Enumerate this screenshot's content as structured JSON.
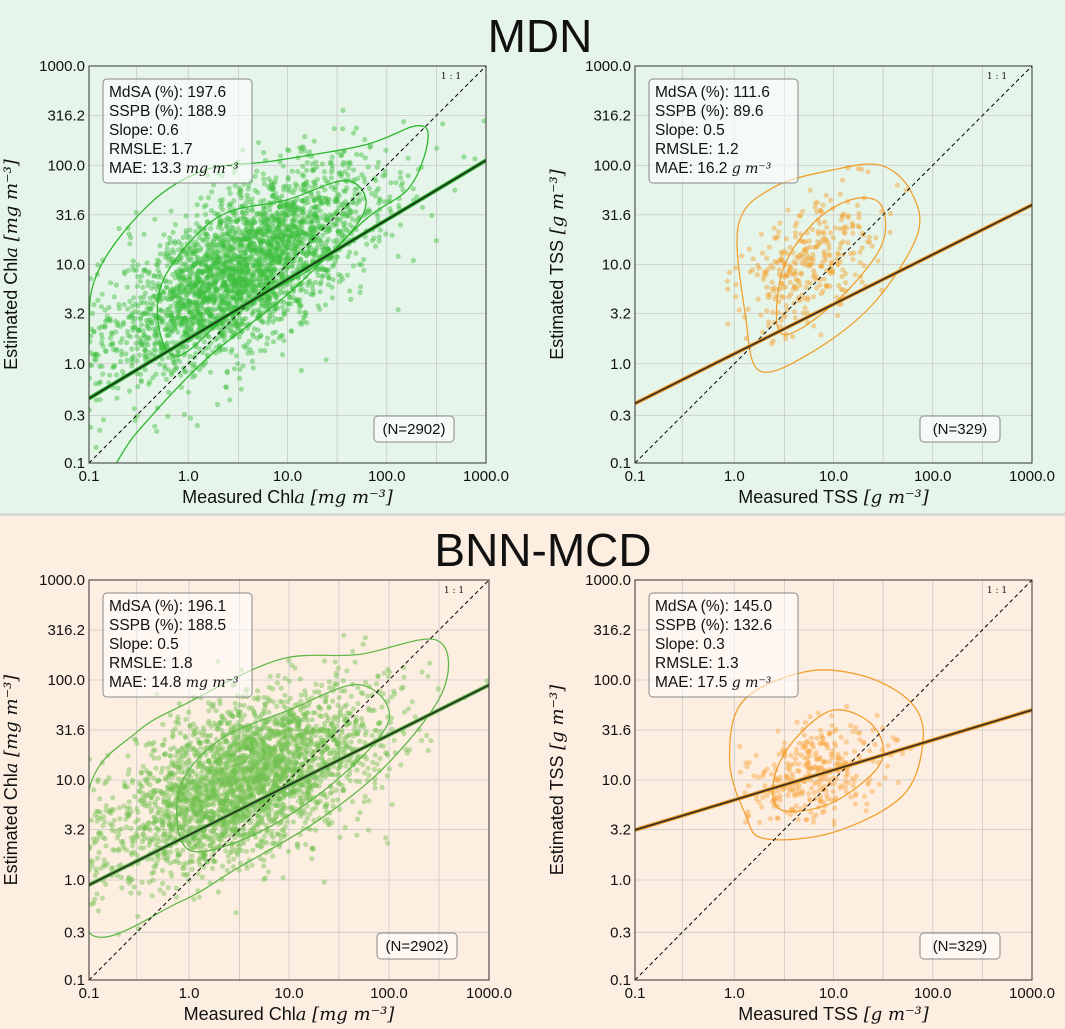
{
  "figure": {
    "sections": [
      {
        "title": "MDN",
        "background": "#e6f5ea"
      },
      {
        "title": "BNN-MCD",
        "background": "#fdeee2"
      }
    ],
    "tick_labels": [
      "0.1",
      "0.3",
      "1.0",
      "3.2",
      "10.0",
      "31.6",
      "100.0",
      "316.2",
      "1000.0"
    ],
    "one_to_one_label": "1 : 1"
  },
  "chart_data": [
    {
      "id": "mdn-chla",
      "type": "scatter",
      "scale": "log",
      "xlim": [
        0.1,
        1000
      ],
      "ylim": [
        0.1,
        1000
      ],
      "xlabel": "Measured Chl",
      "xlabel_italic": "a",
      "ylabel": "Estimated Chl",
      "ylabel_italic": "a",
      "unit": "[mg m⁻³]",
      "color": "#2db82d",
      "point_color": "#3dbf3d",
      "stats": [
        "MdSA (%): 197.6",
        "SSPB (%): 188.9",
        "Slope: 0.6",
        "RMSLE: 1.7"
      ],
      "mae_label": "MAE: 13.3",
      "mae_unit": "mg m⁻³",
      "n_label": "(N=2902)",
      "fit": {
        "intercept_log10": 0.25,
        "slope": 0.6
      },
      "sample": {
        "count": 2902,
        "center_log10": [
          0.55,
          0.95
        ],
        "spread_log10": [
          0.65,
          0.5
        ],
        "correlation": 0.65,
        "min_log10": [
          -1.0,
          -0.9
        ]
      },
      "outer_contour": [
        [
          0.1,
          0.05
        ],
        [
          0.3,
          0.2
        ],
        [
          1.5,
          1.1
        ],
        [
          10,
          5
        ],
        [
          60,
          28
        ],
        [
          170,
          60
        ],
        [
          260,
          180
        ],
        [
          200,
          250
        ],
        [
          60,
          160
        ],
        [
          7,
          110
        ],
        [
          1.5,
          90
        ],
        [
          0.4,
          40
        ],
        [
          0.12,
          8
        ],
        [
          0.1,
          1.5
        ]
      ],
      "inner_contour": [
        [
          0.8,
          1.2
        ],
        [
          3,
          3.5
        ],
        [
          20,
          10
        ],
        [
          60,
          35
        ],
        [
          40,
          70
        ],
        [
          10,
          45
        ],
        [
          2,
          30
        ],
        [
          0.6,
          8
        ],
        [
          0.5,
          2.5
        ]
      ]
    },
    {
      "id": "mdn-tss",
      "type": "scatter",
      "scale": "log",
      "xlim": [
        0.1,
        1000
      ],
      "ylim": [
        0.1,
        1000
      ],
      "xlabel": "Measured TSS",
      "xlabel_italic": "",
      "ylabel": "Estimated TSS",
      "ylabel_italic": "",
      "unit": "[g m⁻³]",
      "color": "#f0a030",
      "point_color": "#f5a22e",
      "stats": [
        "MdSA (%): 111.6",
        "SSPB (%): 89.6",
        "Slope: 0.5",
        "RMSLE: 1.2"
      ],
      "mae_label": "MAE: 16.2",
      "mae_unit": "g m⁻³",
      "n_label": "(N=329)",
      "fit": {
        "intercept_log10": 0.1,
        "slope": 0.5
      },
      "sample": {
        "count": 329,
        "center_log10": [
          0.75,
          1.05
        ],
        "spread_log10": [
          0.35,
          0.35
        ],
        "correlation": 0.45,
        "min_log10": [
          -0.1,
          0.2
        ]
      },
      "outer_contour": [
        [
          1.8,
          0.85
        ],
        [
          6,
          1.3
        ],
        [
          25,
          4
        ],
        [
          70,
          20
        ],
        [
          60,
          55
        ],
        [
          30,
          100
        ],
        [
          10,
          90
        ],
        [
          2.5,
          60
        ],
        [
          1.1,
          25
        ],
        [
          1.3,
          3
        ]
      ],
      "inner_contour": [
        [
          3,
          2
        ],
        [
          10,
          4
        ],
        [
          30,
          15
        ],
        [
          30,
          40
        ],
        [
          15,
          45
        ],
        [
          6,
          25
        ],
        [
          3,
          8
        ]
      ]
    },
    {
      "id": "bnn-chla",
      "type": "scatter",
      "scale": "log",
      "xlim": [
        0.1,
        1000
      ],
      "ylim": [
        0.1,
        1000
      ],
      "xlabel": "Measured Chl",
      "xlabel_italic": "a",
      "ylabel": "Estimated Chl",
      "ylabel_italic": "a",
      "unit": "[mg m⁻³]",
      "color": "#62b84a",
      "point_color": "#72c050",
      "stats": [
        "MdSA (%): 196.1",
        "SSPB (%): 188.5",
        "Slope: 0.5",
        "RMSLE: 1.8"
      ],
      "mae_label": "MAE: 14.8",
      "mae_unit": "mg m⁻³",
      "n_label": "(N=2902)",
      "fit": {
        "intercept_log10": 0.45,
        "slope": 0.5
      },
      "sample": {
        "count": 2902,
        "center_log10": [
          0.55,
          1.0
        ],
        "spread_log10": [
          0.65,
          0.45
        ],
        "correlation": 0.55,
        "min_log10": [
          -1.0,
          -0.7
        ]
      },
      "outer_contour": [
        [
          0.1,
          0.3
        ],
        [
          0.8,
          0.6
        ],
        [
          3,
          1.3
        ],
        [
          20,
          4
        ],
        [
          100,
          15
        ],
        [
          350,
          80
        ],
        [
          300,
          250
        ],
        [
          50,
          180
        ],
        [
          8,
          160
        ],
        [
          1,
          60
        ],
        [
          0.3,
          30
        ],
        [
          0.1,
          8
        ]
      ],
      "inner_contour": [
        [
          1,
          2
        ],
        [
          5,
          3
        ],
        [
          30,
          10
        ],
        [
          100,
          40
        ],
        [
          50,
          90
        ],
        [
          10,
          50
        ],
        [
          2,
          25
        ],
        [
          0.8,
          8
        ]
      ]
    },
    {
      "id": "bnn-tss",
      "type": "scatter",
      "scale": "log",
      "xlim": [
        0.1,
        1000
      ],
      "ylim": [
        0.1,
        1000
      ],
      "xlabel": "Measured TSS",
      "xlabel_italic": "",
      "ylabel": "Estimated TSS",
      "ylabel_italic": "",
      "unit": "[g m⁻³]",
      "color": "#f0a030",
      "point_color": "#f8a640",
      "stats": [
        "MdSA (%): 145.0",
        "SSPB (%): 132.6",
        "Slope: 0.3",
        "RMSLE: 1.3"
      ],
      "mae_label": "MAE: 17.5",
      "mae_unit": "g m⁻³",
      "n_label": "(N=329)",
      "fit": {
        "intercept_log10": 0.8,
        "slope": 0.3
      },
      "sample": {
        "count": 329,
        "center_log10": [
          0.8,
          1.05
        ],
        "spread_log10": [
          0.35,
          0.25
        ],
        "correlation": 0.35,
        "min_log10": [
          0.0,
          0.55
        ]
      },
      "outer_contour": [
        [
          2,
          2.6
        ],
        [
          10,
          3
        ],
        [
          50,
          7
        ],
        [
          80,
          25
        ],
        [
          60,
          60
        ],
        [
          20,
          110
        ],
        [
          5,
          120
        ],
        [
          1.2,
          60
        ],
        [
          0.9,
          15
        ],
        [
          1.3,
          4.5
        ]
      ],
      "inner_contour": [
        [
          3,
          5
        ],
        [
          10,
          6
        ],
        [
          30,
          15
        ],
        [
          25,
          35
        ],
        [
          10,
          50
        ],
        [
          4,
          25
        ],
        [
          2.5,
          10
        ]
      ]
    }
  ]
}
